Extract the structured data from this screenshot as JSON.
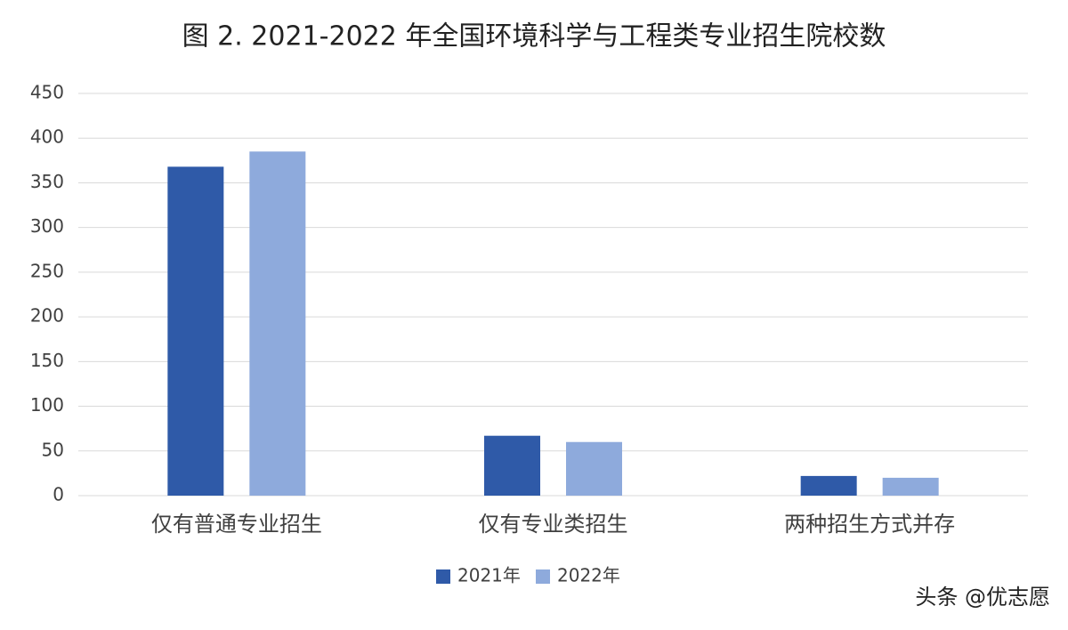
{
  "chart_data": {
    "type": "bar",
    "title": "图 2. 2021-2022 年全国环境科学与工程类专业招生院校数",
    "categories": [
      "仅有普通专业招生",
      "仅有专业类招生",
      "两种招生方式并存"
    ],
    "series": [
      {
        "name": "2021年",
        "color": "#2f5aa8",
        "values": [
          368,
          67,
          22
        ]
      },
      {
        "name": "2022年",
        "color": "#8eaadc",
        "values": [
          385,
          60,
          20
        ]
      }
    ],
    "ylim": [
      0,
      450
    ],
    "yticks": [
      0,
      50,
      100,
      150,
      200,
      250,
      300,
      350,
      400,
      450
    ],
    "grid": true,
    "legend": "bottom",
    "credit": "头条 @优志愿"
  }
}
